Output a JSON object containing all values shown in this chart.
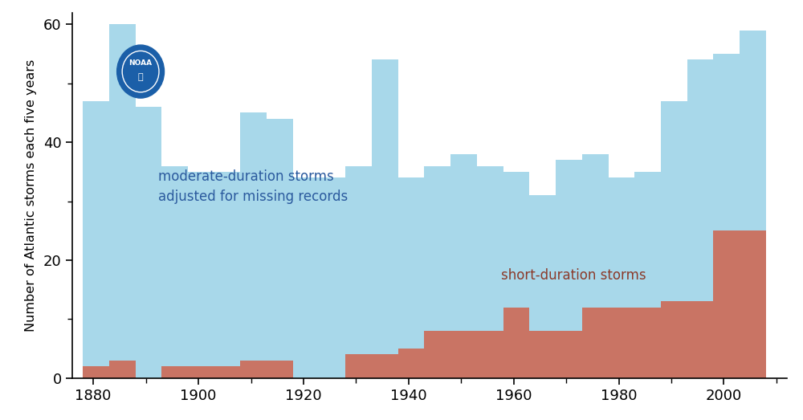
{
  "years": [
    1878,
    1883,
    1888,
    1893,
    1898,
    1903,
    1908,
    1913,
    1918,
    1923,
    1928,
    1933,
    1938,
    1943,
    1948,
    1953,
    1958,
    1963,
    1968,
    1973,
    1978,
    1983,
    1988,
    1993,
    1998,
    2003
  ],
  "blue_values": [
    47,
    60,
    46,
    36,
    35,
    35,
    45,
    44,
    34,
    34,
    36,
    54,
    34,
    36,
    38,
    36,
    35,
    31,
    37,
    38,
    34,
    35,
    47,
    54,
    55,
    59
  ],
  "red_values": [
    2,
    3,
    0,
    2,
    2,
    2,
    3,
    3,
    0,
    0,
    4,
    4,
    5,
    8,
    8,
    8,
    12,
    8,
    8,
    12,
    12,
    12,
    13,
    13,
    25,
    25
  ],
  "blue_color": "#A8D8EA",
  "red_color": "#C97464",
  "bg_color": "#FFFFFF",
  "ylabel": "Number of Atlantic storms each five years",
  "ylim": [
    0,
    62
  ],
  "xlim": [
    1876,
    2012
  ],
  "yticks": [
    0,
    20,
    40,
    60
  ],
  "xticks": [
    1880,
    1900,
    1920,
    1940,
    1960,
    1980,
    2000
  ],
  "blue_label": "moderate-duration storms\nadjusted for missing records",
  "red_label": "short-duration storms",
  "blue_label_color": "#2B5A9E",
  "red_label_color": "#8B3A2A",
  "bin_width": 5
}
